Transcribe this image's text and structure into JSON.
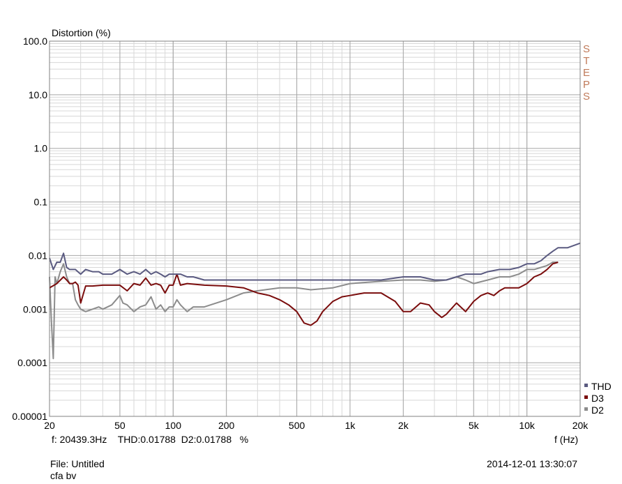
{
  "chart_data": {
    "type": "line",
    "ylabel": "Distortion (%)",
    "xlabel": "f (Hz)",
    "x_scale": "log",
    "y_scale": "log",
    "xlim": [
      20,
      20000
    ],
    "ylim": [
      1e-05,
      100
    ],
    "grid": true,
    "legend_position": "bottom-right",
    "side_label": "STEPS",
    "x_ticks": [
      {
        "v": 20,
        "label": "20"
      },
      {
        "v": 50,
        "label": "50"
      },
      {
        "v": 100,
        "label": "100"
      },
      {
        "v": 200,
        "label": "200"
      },
      {
        "v": 500,
        "label": "500"
      },
      {
        "v": 1000,
        "label": "1k"
      },
      {
        "v": 2000,
        "label": "2k"
      },
      {
        "v": 5000,
        "label": "5k"
      },
      {
        "v": 10000,
        "label": "10k"
      },
      {
        "v": 20000,
        "label": "20k"
      }
    ],
    "y_ticks": [
      {
        "v": 100,
        "label": "100.0"
      },
      {
        "v": 10,
        "label": "10.0"
      },
      {
        "v": 1,
        "label": "1.0"
      },
      {
        "v": 0.1,
        "label": "0.1"
      },
      {
        "v": 0.01,
        "label": "0.01"
      },
      {
        "v": 0.001,
        "label": "0.001"
      },
      {
        "v": 0.0001,
        "label": "0.0001"
      },
      {
        "v": 1e-05,
        "label": "0.00001"
      }
    ],
    "series": [
      {
        "name": "THD",
        "color": "#5a5a80",
        "x": [
          20,
          21,
          22,
          23,
          24,
          25,
          26,
          27,
          28,
          30,
          32,
          35,
          38,
          40,
          45,
          50,
          55,
          60,
          65,
          70,
          75,
          80,
          85,
          90,
          95,
          100,
          110,
          120,
          130,
          150,
          180,
          200,
          250,
          300,
          350,
          400,
          500,
          600,
          700,
          800,
          900,
          1000,
          1200,
          1500,
          2000,
          2500,
          3000,
          3500,
          4000,
          4500,
          5000,
          5500,
          6000,
          7000,
          8000,
          9000,
          10000,
          11000,
          12000,
          13000,
          14000,
          15000,
          17000,
          20000
        ],
        "y": [
          0.009,
          0.0055,
          0.0075,
          0.0075,
          0.011,
          0.006,
          0.0055,
          0.0055,
          0.0055,
          0.0045,
          0.0055,
          0.005,
          0.005,
          0.0045,
          0.0045,
          0.0055,
          0.0045,
          0.005,
          0.0045,
          0.0055,
          0.0045,
          0.005,
          0.0045,
          0.004,
          0.0045,
          0.0045,
          0.0045,
          0.004,
          0.004,
          0.0035,
          0.0035,
          0.0035,
          0.0035,
          0.0035,
          0.0035,
          0.0035,
          0.0035,
          0.0035,
          0.0035,
          0.0035,
          0.0035,
          0.0035,
          0.0035,
          0.0035,
          0.004,
          0.004,
          0.0035,
          0.0035,
          0.004,
          0.0045,
          0.0045,
          0.0045,
          0.005,
          0.0055,
          0.0055,
          0.006,
          0.007,
          0.007,
          0.008,
          0.01,
          0.012,
          0.014,
          0.014,
          0.017
        ]
      },
      {
        "name": "D3",
        "color": "#7a0c0c",
        "x": [
          20,
          22,
          24,
          25,
          26,
          27,
          28,
          29,
          30,
          32,
          35,
          40,
          45,
          50,
          55,
          60,
          65,
          70,
          75,
          80,
          85,
          90,
          95,
          100,
          105,
          110,
          120,
          150,
          200,
          250,
          300,
          350,
          400,
          450,
          500,
          550,
          600,
          650,
          700,
          800,
          900,
          1000,
          1200,
          1500,
          1800,
          2000,
          2200,
          2500,
          2800,
          3000,
          3300,
          3500,
          4000,
          4500,
          5000,
          5500,
          6000,
          6500,
          7000,
          7500,
          8000,
          9000,
          10000,
          11000,
          12000,
          13000,
          14000,
          15000
        ],
        "y": [
          0.0025,
          0.003,
          0.004,
          0.0035,
          0.003,
          0.003,
          0.0032,
          0.0028,
          0.0013,
          0.0027,
          0.0027,
          0.0028,
          0.0028,
          0.0028,
          0.0022,
          0.003,
          0.0028,
          0.0038,
          0.0028,
          0.003,
          0.0028,
          0.002,
          0.0028,
          0.0028,
          0.0045,
          0.0028,
          0.003,
          0.0028,
          0.0027,
          0.0025,
          0.002,
          0.0018,
          0.0015,
          0.0012,
          0.0009,
          0.00055,
          0.0005,
          0.0006,
          0.0009,
          0.0014,
          0.0017,
          0.0018,
          0.002,
          0.002,
          0.0014,
          0.0009,
          0.0009,
          0.0013,
          0.0012,
          0.0009,
          0.0007,
          0.0008,
          0.0013,
          0.0009,
          0.0014,
          0.0018,
          0.002,
          0.0018,
          0.0022,
          0.0025,
          0.0025,
          0.0025,
          0.003,
          0.004,
          0.0045,
          0.0055,
          0.007,
          0.0075
        ]
      },
      {
        "name": "D2",
        "color": "#8c8c8c",
        "x": [
          20,
          20.5,
          21,
          21.5,
          22,
          23,
          24,
          25,
          26,
          27,
          28,
          29,
          30,
          32,
          35,
          38,
          40,
          45,
          50,
          52,
          55,
          60,
          65,
          70,
          75,
          80,
          85,
          90,
          95,
          100,
          105,
          110,
          120,
          130,
          150,
          200,
          250,
          300,
          400,
          500,
          600,
          800,
          1000,
          1500,
          2000,
          2500,
          3000,
          3500,
          4000,
          4500,
          5000,
          6000,
          7000,
          8000,
          9000,
          10000,
          11000,
          12000,
          13000,
          14000,
          15000
        ],
        "y": [
          0.004,
          0.0006,
          0.00012,
          0.004,
          0.003,
          0.005,
          0.007,
          0.004,
          0.003,
          0.003,
          0.0015,
          0.0012,
          0.001,
          0.0009,
          0.001,
          0.0011,
          0.001,
          0.0012,
          0.0018,
          0.0013,
          0.0012,
          0.0009,
          0.0011,
          0.0012,
          0.0017,
          0.001,
          0.0012,
          0.0009,
          0.0011,
          0.0011,
          0.0015,
          0.0012,
          0.0009,
          0.0011,
          0.0011,
          0.0015,
          0.002,
          0.0022,
          0.0025,
          0.0025,
          0.0023,
          0.0025,
          0.003,
          0.0033,
          0.0035,
          0.0035,
          0.0033,
          0.0035,
          0.004,
          0.0035,
          0.003,
          0.0035,
          0.004,
          0.004,
          0.0045,
          0.0055,
          0.0055,
          0.006,
          0.0065,
          0.0075,
          0.0075
        ]
      }
    ]
  },
  "footer": {
    "cursor_readout": "f: 20439.3Hz    THD:0.01788  D2:0.01788   %",
    "file": "File: Untitled",
    "author": "cfa bv",
    "timestamp": "2014-12-01 13:30:07"
  }
}
